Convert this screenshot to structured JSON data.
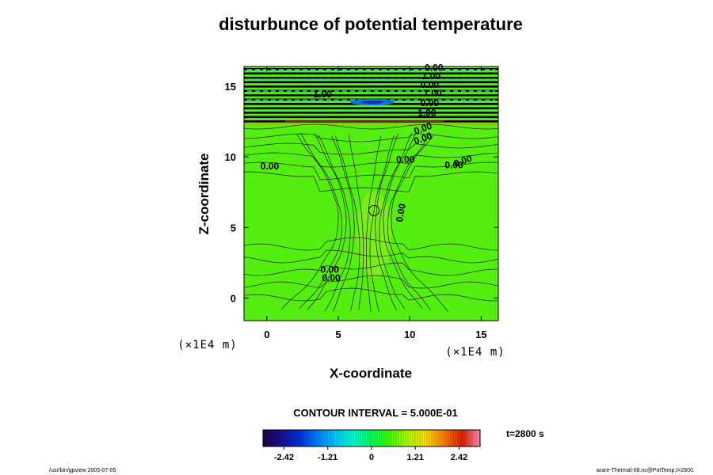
{
  "chart_data": {
    "type": "heatmap",
    "title": "disturbunce of potential temperature",
    "xlabel": "X-coordinate",
    "ylabel": "Z-coordinate",
    "x_unit": "(×1E4 m)",
    "y_unit": "(×1E4 m)",
    "xlim": [
      -1.6,
      16.2
    ],
    "ylim": [
      -1.6,
      16.4
    ],
    "x_ticks": [
      0,
      5,
      10,
      15
    ],
    "y_ticks": [
      0,
      5,
      10,
      15
    ],
    "x_tick_labels": [
      "0",
      "5",
      "10",
      "15"
    ],
    "y_tick_labels": [
      "0",
      "5",
      "10",
      "15"
    ],
    "contour_interval_text": "CONTOUR INTERVAL = 5.000E-01",
    "time_text": "t=2800 s",
    "colorbar": {
      "min": -3.0,
      "max": 3.0,
      "tick_values": [
        -2.42,
        -1.21,
        0,
        1.21,
        2.42
      ],
      "tick_labels": [
        "-2.42",
        "-1.21",
        "0",
        "1.21",
        "2.42"
      ],
      "colors": [
        "#200040",
        "#1a1090",
        "#0030e0",
        "#0080ff",
        "#00c8ff",
        "#00ffd0",
        "#00ff60",
        "#40ff00",
        "#b0ff00",
        "#ffe000",
        "#ff8000",
        "#e02000",
        "#ff90c0"
      ]
    },
    "field": {
      "background_value": 0.0,
      "background_color": "#55ee11",
      "bubble_center": [
        7.5,
        6.2
      ],
      "bubble_color": "#99ee22"
    },
    "contour_labels": [
      {
        "text": "0.00",
        "x": 0.2,
        "y": 9.1
      },
      {
        "text": "0.00",
        "x": 9.7,
        "y": 9.6
      },
      {
        "text": "0.00",
        "x": 13.1,
        "y": 9.2
      },
      {
        "text": "0.00",
        "x": 13.8,
        "y": 9.5
      },
      {
        "text": "0.00",
        "x": 11.0,
        "y": 11.1
      },
      {
        "text": "0.00",
        "x": 11.0,
        "y": 11.8
      },
      {
        "text": "0.00",
        "x": 9.6,
        "y": 6.0
      },
      {
        "text": "0.00",
        "x": 4.4,
        "y": 1.8
      },
      {
        "text": "0.00",
        "x": 4.5,
        "y": 1.2
      },
      {
        "text": "1.00",
        "x": 3.9,
        "y": 14.2
      },
      {
        "text": "0.00",
        "x": 11.7,
        "y": 16.1
      },
      {
        "text": "1.00",
        "x": 11.5,
        "y": 15.5
      },
      {
        "text": "0.00",
        "x": 11.4,
        "y": 14.9
      },
      {
        "text": "1.00",
        "x": 11.6,
        "y": 14.3
      },
      {
        "text": "0.00",
        "x": 11.4,
        "y": 13.6
      },
      {
        "text": "1.00",
        "x": 11.2,
        "y": 12.9
      }
    ]
  },
  "footer": {
    "left": "/usr/bin/gpview 2005-07-05",
    "right": "arare-Thermal-08.nc@PotTemp,t=2800"
  }
}
